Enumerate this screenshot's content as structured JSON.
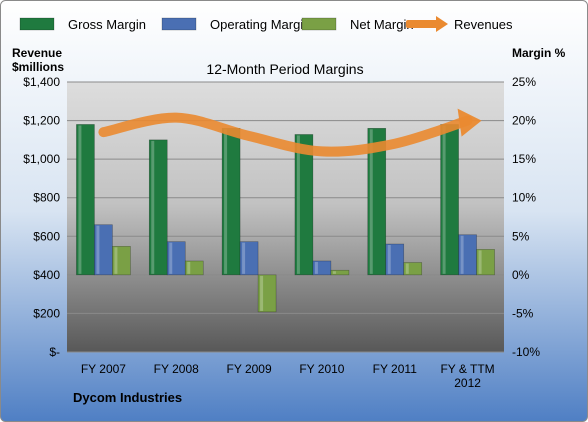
{
  "chart_data": {
    "type": "bar",
    "title": "12-Month Period Margins",
    "company": "Dycom Industries",
    "left_axis_label": [
      "Revenue",
      "$millions"
    ],
    "right_axis_label": "Margin %",
    "categories": [
      "FY 2007",
      "FY 2008",
      "FY 2009",
      "FY 2010",
      "FY 2011",
      "FY & TTM 2012"
    ],
    "category_labels": [
      [
        "FY 2007"
      ],
      [
        "FY 2008"
      ],
      [
        "FY 2009"
      ],
      [
        "FY 2010"
      ],
      [
        "FY 2011"
      ],
      [
        "FY & TTM",
        "2012"
      ]
    ],
    "left_axis": {
      "min": 0,
      "max": 1400,
      "step": 200,
      "ticks": [
        "$-",
        "$200",
        "$400",
        "$600",
        "$800",
        "$1,000",
        "$1,200",
        "$1,400"
      ]
    },
    "right_axis": {
      "min": -10,
      "max": 25,
      "step": 5,
      "ticks": [
        "-10%",
        "-5%",
        "0%",
        "5%",
        "10%",
        "15%",
        "20%",
        "25%"
      ]
    },
    "series": [
      {
        "name": "Gross Margin",
        "axis": "right",
        "color": "#1f7a3f",
        "values": [
          19.5,
          17.5,
          19.0,
          18.2,
          19.0,
          19.5
        ]
      },
      {
        "name": "Operating Margin",
        "axis": "right",
        "color": "#4a6fb3",
        "values": [
          6.5,
          4.3,
          4.3,
          1.8,
          4.0,
          5.2
        ]
      },
      {
        "name": "Net Margin",
        "axis": "right",
        "color": "#7aa045",
        "values": [
          3.7,
          1.8,
          -4.8,
          0.6,
          1.6,
          3.3
        ]
      },
      {
        "name": "Revenues",
        "axis": "left",
        "type": "line",
        "color": "#ea8a30",
        "values": [
          1140,
          1215,
          1120,
          1040,
          1080,
          1200
        ]
      }
    ],
    "grid": true,
    "legend": "top"
  }
}
